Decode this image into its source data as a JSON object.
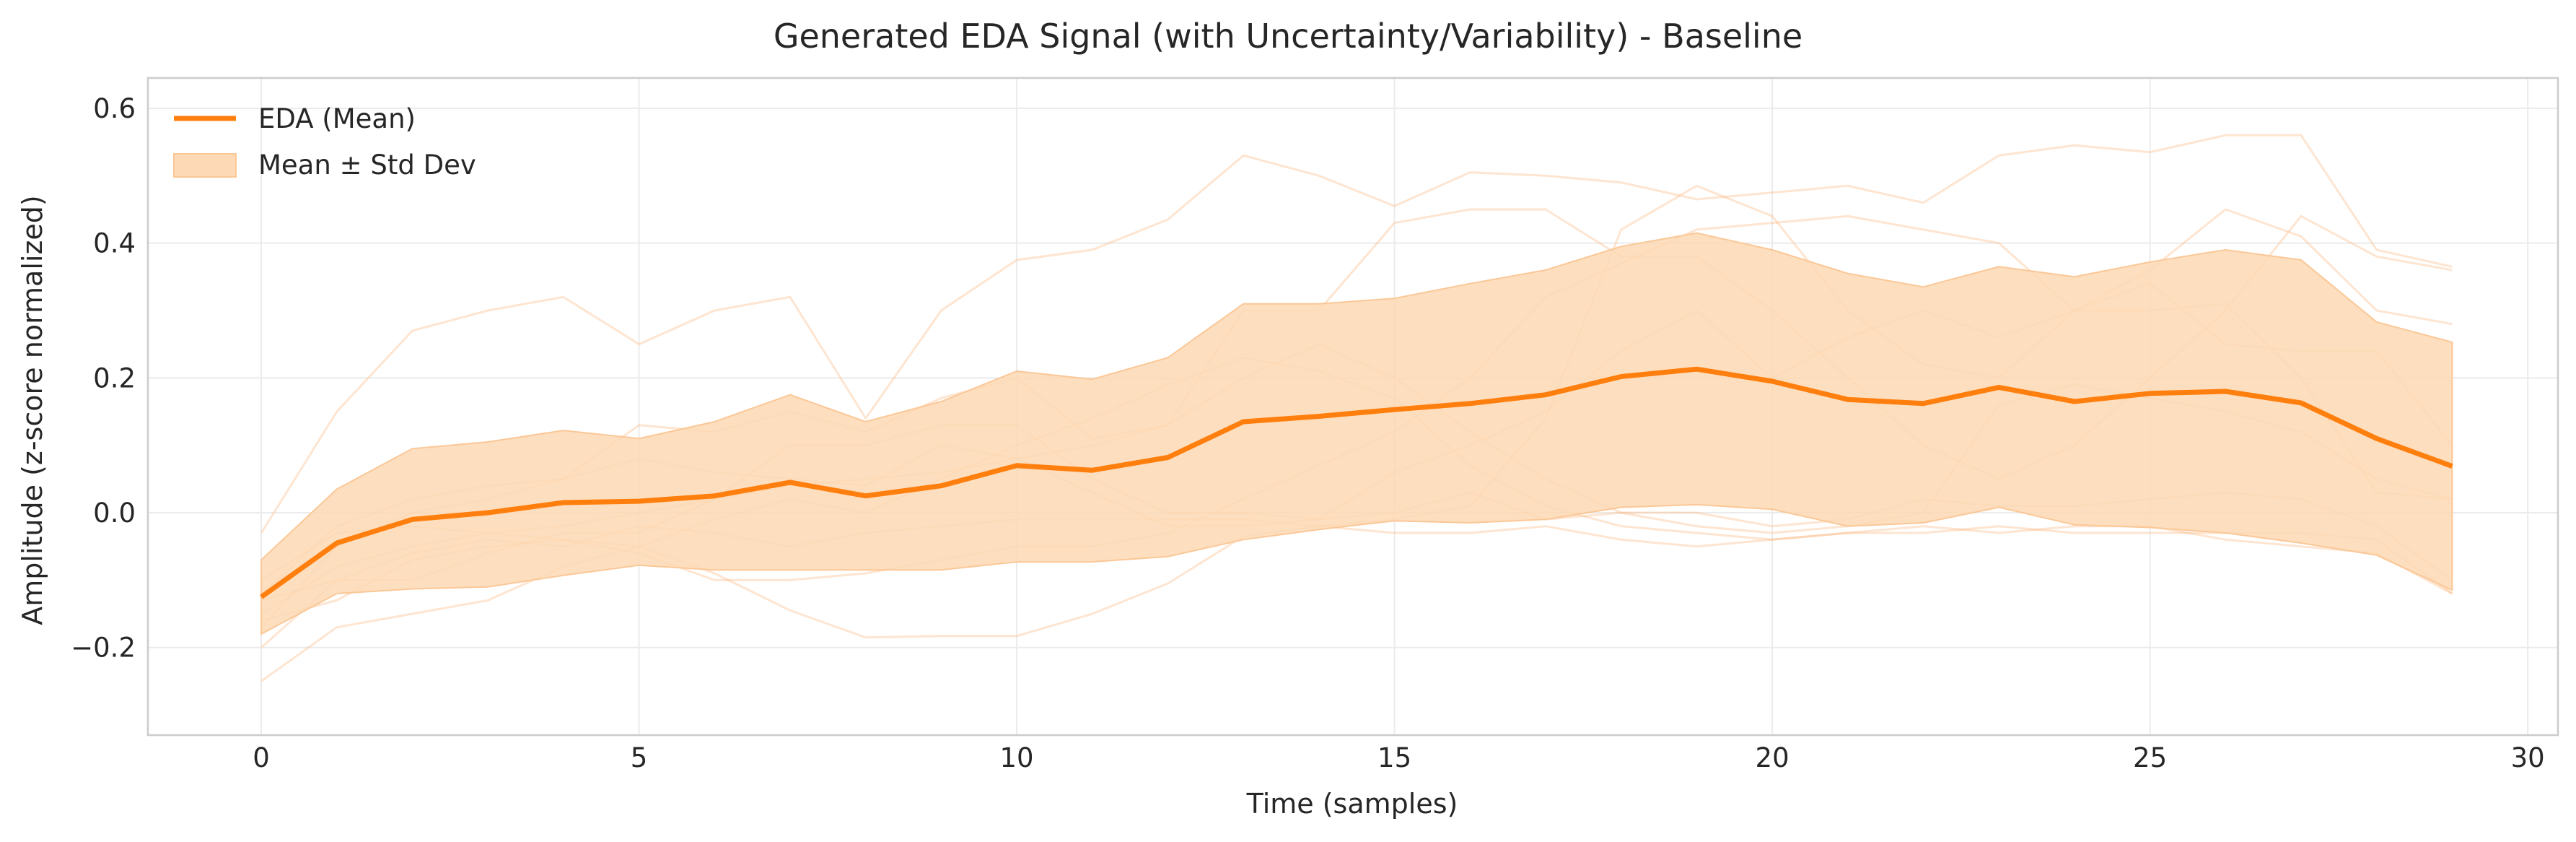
{
  "chart_data": {
    "type": "line",
    "title": "Generated EDA Signal (with Uncertainty/Variability) - Baseline",
    "xlabel": "Time (samples)",
    "ylabel": "Amplitude (z-score normalized)",
    "xlim": [
      -1.5,
      30.4
    ],
    "ylim": [
      -0.33,
      0.645
    ],
    "xticks": [
      0,
      5,
      10,
      15,
      20,
      25,
      30
    ],
    "xtick_labels": [
      "0",
      "5",
      "10",
      "15",
      "20",
      "25",
      "30"
    ],
    "yticks": [
      -0.2,
      0.0,
      0.2,
      0.4,
      0.6
    ],
    "ytick_labels": [
      "−0.2",
      "0.0",
      "0.2",
      "0.4",
      "0.6"
    ],
    "grid": true,
    "legend_position": "top-left",
    "colors": {
      "mean": "#ff7f0e",
      "band": "#fdd9b5",
      "samples": "#fdb47a"
    },
    "x": [
      0,
      1,
      2,
      3,
      4,
      5,
      6,
      7,
      8,
      9,
      10,
      11,
      12,
      13,
      14,
      15,
      16,
      17,
      18,
      19,
      20,
      21,
      22,
      23,
      24,
      25,
      26,
      27,
      28,
      29
    ],
    "series": [
      {
        "name": "EDA (Mean)",
        "values": [
          -0.125,
          -0.045,
          -0.01,
          0.0,
          0.015,
          0.017,
          0.025,
          0.045,
          0.025,
          0.04,
          0.07,
          0.063,
          0.082,
          0.135,
          0.143,
          0.153,
          0.162,
          0.175,
          0.202,
          0.213,
          0.195,
          0.168,
          0.162,
          0.186,
          0.165,
          0.177,
          0.18,
          0.163,
          0.11,
          0.069
        ]
      },
      {
        "name": "Mean ± Std Dev",
        "lower": [
          -0.18,
          -0.12,
          -0.113,
          -0.11,
          -0.093,
          -0.078,
          -0.085,
          -0.085,
          -0.085,
          -0.085,
          -0.073,
          -0.073,
          -0.065,
          -0.04,
          -0.025,
          -0.012,
          -0.015,
          -0.01,
          0.008,
          0.012,
          0.005,
          -0.02,
          -0.015,
          0.008,
          -0.018,
          -0.022,
          -0.03,
          -0.045,
          -0.063,
          -0.115
        ],
        "upper": [
          -0.07,
          0.035,
          0.095,
          0.105,
          0.122,
          0.11,
          0.135,
          0.175,
          0.135,
          0.165,
          0.21,
          0.198,
          0.23,
          0.31,
          0.31,
          0.318,
          0.34,
          0.36,
          0.395,
          0.415,
          0.39,
          0.355,
          0.335,
          0.365,
          0.35,
          0.372,
          0.39,
          0.375,
          0.283,
          0.253
        ]
      }
    ],
    "sample_traces": [
      [
        -0.03,
        0.15,
        0.27,
        0.3,
        0.32,
        0.25,
        0.3,
        0.32,
        0.14,
        0.3,
        0.375,
        0.39,
        0.435,
        0.53,
        0.5,
        0.455,
        0.505,
        0.5,
        0.49,
        0.465,
        0.475,
        0.485,
        0.46,
        0.53,
        0.545,
        0.535,
        0.56,
        0.56,
        0.39,
        0.365
      ],
      [
        -0.25,
        -0.17,
        -0.15,
        -0.13,
        -0.08,
        -0.05,
        -0.09,
        -0.145,
        -0.185,
        -0.183,
        -0.183,
        -0.15,
        -0.105,
        -0.035,
        -0.02,
        -0.01,
        0.01,
        0.14,
        0.42,
        0.485,
        0.44,
        0.3,
        0.22,
        0.2,
        0.3,
        0.36,
        0.45,
        0.41,
        0.3,
        0.28
      ],
      [
        -0.17,
        -0.05,
        0.0,
        0.02,
        0.05,
        0.13,
        0.12,
        0.15,
        0.12,
        0.17,
        0.2,
        0.11,
        0.13,
        0.3,
        0.3,
        0.43,
        0.45,
        0.45,
        0.38,
        0.38,
        0.3,
        0.2,
        0.1,
        0.05,
        0.1,
        0.2,
        0.3,
        0.44,
        0.38,
        0.36
      ],
      [
        -0.1,
        -0.03,
        -0.02,
        -0.03,
        -0.04,
        -0.05,
        -0.01,
        0.02,
        0.0,
        0.05,
        0.1,
        0.14,
        0.19,
        0.23,
        0.21,
        0.17,
        0.07,
        0.01,
        -0.02,
        -0.03,
        -0.04,
        -0.03,
        -0.02,
        -0.03,
        -0.02,
        -0.02,
        -0.04,
        -0.05,
        -0.06,
        -0.12
      ],
      [
        -0.15,
        -0.08,
        -0.05,
        -0.03,
        -0.02,
        0.0,
        0.02,
        0.04,
        0.05,
        0.06,
        0.08,
        0.1,
        0.13,
        0.2,
        0.25,
        0.2,
        0.12,
        0.05,
        0.0,
        -0.02,
        -0.03,
        -0.02,
        0.0,
        0.16,
        0.19,
        0.17,
        0.15,
        0.12,
        0.05,
        0.02
      ],
      [
        -0.13,
        -0.1,
        -0.1,
        -0.06,
        -0.03,
        -0.03,
        0.02,
        0.1,
        0.1,
        0.13,
        0.13,
        0.05,
        0.0,
        0.0,
        -0.01,
        0.06,
        0.1,
        0.15,
        0.24,
        0.3,
        0.2,
        0.26,
        0.3,
        0.26,
        0.3,
        0.3,
        0.31,
        0.2,
        0.03,
        0.02
      ],
      [
        -0.16,
        -0.13,
        -0.07,
        -0.05,
        -0.04,
        -0.06,
        -0.1,
        -0.1,
        -0.09,
        -0.07,
        -0.05,
        -0.05,
        -0.03,
        0.02,
        0.07,
        0.12,
        0.2,
        0.32,
        0.37,
        0.42,
        0.43,
        0.44,
        0.42,
        0.4,
        0.3,
        0.34,
        0.25,
        0.24,
        0.24,
        0.1
      ],
      [
        -0.12,
        -0.02,
        0.02,
        0.04,
        0.05,
        0.08,
        0.06,
        0.05,
        0.04,
        0.1,
        0.08,
        0.03,
        -0.02,
        -0.02,
        -0.01,
        0.0,
        0.03,
        -0.01,
        0.0,
        0.0,
        -0.02,
        -0.01,
        0.02,
        0.01,
        0.01,
        0.02,
        0.03,
        0.02,
        -0.02,
        -0.1
      ],
      [
        -0.2,
        -0.1,
        -0.06,
        -0.04,
        -0.05,
        -0.02,
        -0.03,
        -0.05,
        -0.03,
        -0.02,
        -0.01,
        -0.01,
        -0.01,
        -0.01,
        -0.02,
        -0.03,
        -0.03,
        -0.02,
        -0.04,
        -0.05,
        -0.04,
        -0.03,
        -0.03,
        -0.02,
        -0.03,
        -0.03,
        -0.03,
        -0.03,
        -0.04,
        -0.12
      ]
    ]
  }
}
